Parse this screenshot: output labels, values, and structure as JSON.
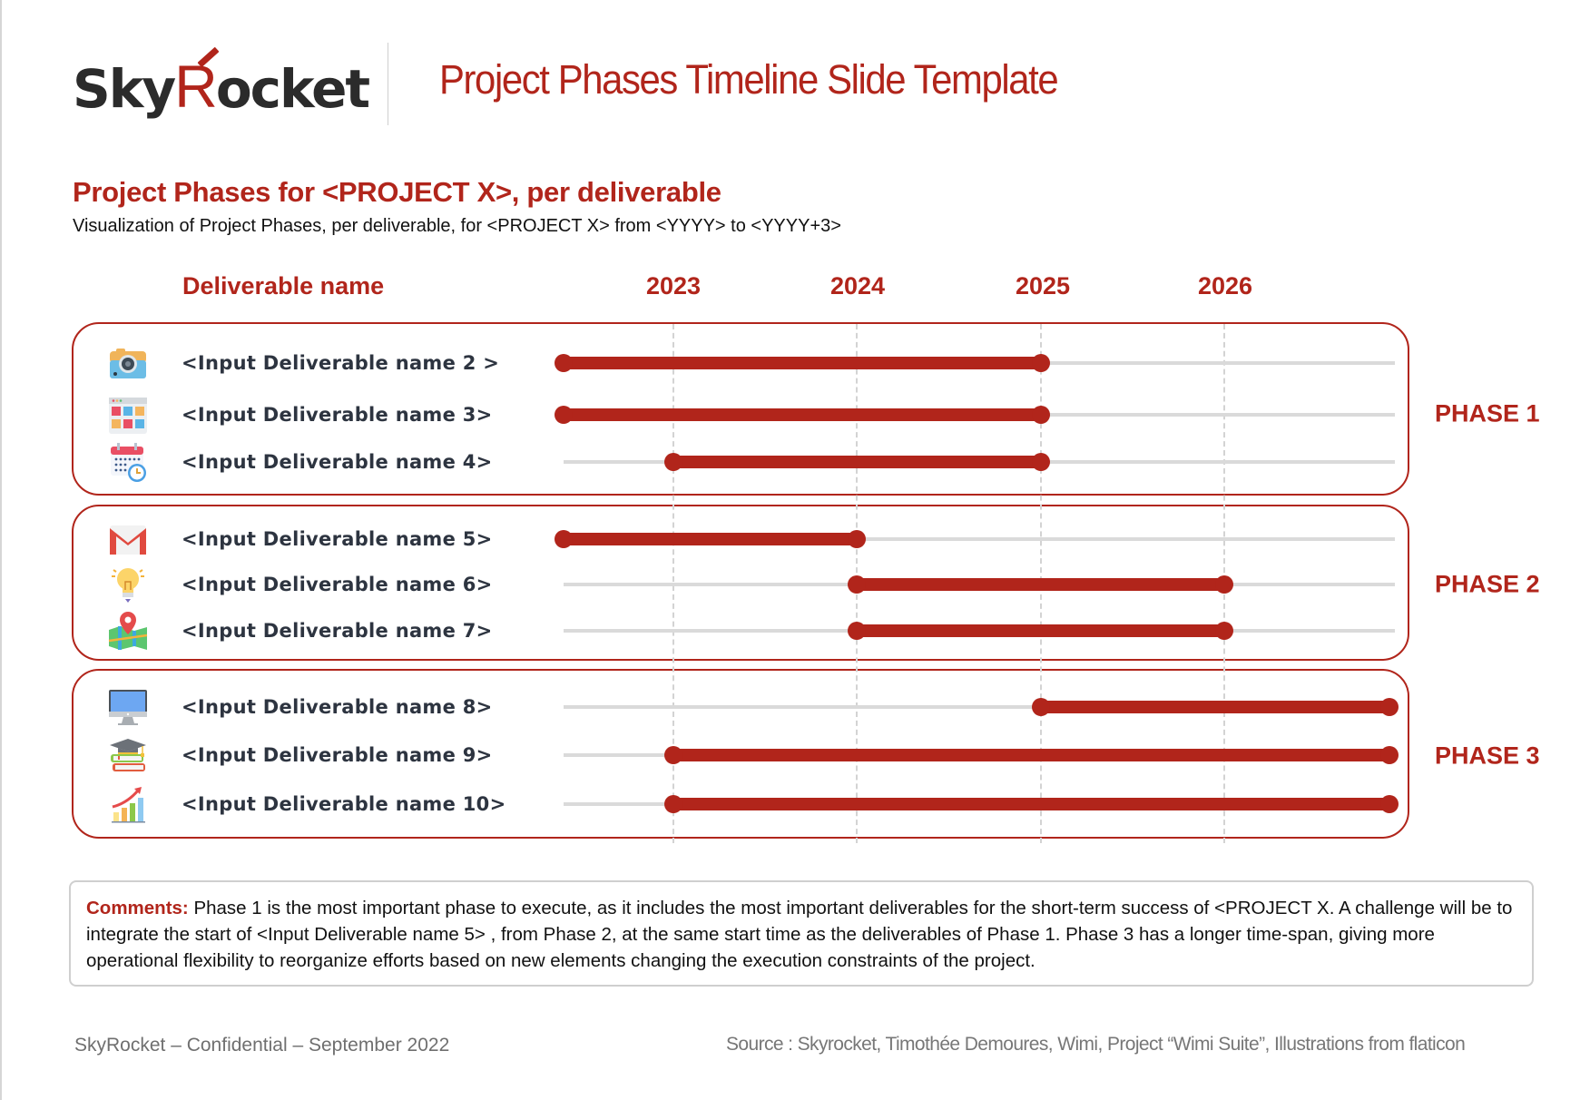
{
  "header": {
    "logo_prefix": "Sky",
    "logo_r": "R",
    "logo_suffix": "ocket",
    "title": "Project Phases Timeline Slide Template"
  },
  "section": {
    "heading": "Project Phases for <PROJECT X>, per deliverable",
    "subheading": "Visualization of Project Phases, per deliverable, for <PROJECT X> from <YYYY> to <YYYY+3>"
  },
  "colors": {
    "accent": "#b1251b",
    "track": "#dadada",
    "text_dark": "#2d3440"
  },
  "chart_data": {
    "type": "gantt",
    "title": "Project Phases for <PROJECT X>, per deliverable",
    "column_header": "Deliverable name",
    "x_ticks": [
      "2023",
      "2024",
      "2025",
      "2026"
    ],
    "x_range": [
      2022.4,
      2026.95
    ],
    "grid": "vertical dashed at year ticks",
    "phases": [
      {
        "name": "PHASE 1",
        "deliverables": [
          {
            "label": "<Input Deliverable name 2 >",
            "icon": "camera-icon",
            "start": 2022.4,
            "end": 2025.0
          },
          {
            "label": "<Input Deliverable name 3>",
            "icon": "app-grid-icon",
            "start": 2022.4,
            "end": 2025.0
          },
          {
            "label": "<Input Deliverable name 4>",
            "icon": "calendar-clock-icon",
            "start": 2023.0,
            "end": 2025.0
          }
        ]
      },
      {
        "name": "PHASE 2",
        "deliverables": [
          {
            "label": "<Input Deliverable name 5>",
            "icon": "gmail-icon",
            "start": 2022.4,
            "end": 2024.0
          },
          {
            "label": "<Input Deliverable name 6>",
            "icon": "lightbulb-icon",
            "start": 2024.0,
            "end": 2026.0
          },
          {
            "label": "<Input Deliverable name 7>",
            "icon": "map-pin-icon",
            "start": 2024.0,
            "end": 2026.0
          }
        ]
      },
      {
        "name": "PHASE 3",
        "deliverables": [
          {
            "label": "<Input Deliverable name 8>",
            "icon": "monitor-icon",
            "start": 2025.0,
            "end": 2026.9
          },
          {
            "label": "<Input Deliverable name 9>",
            "icon": "graduation-books-icon",
            "start": 2023.0,
            "end": 2026.9
          },
          {
            "label": "<Input Deliverable name 10>",
            "icon": "growth-chart-icon",
            "start": 2023.0,
            "end": 2026.9
          }
        ]
      }
    ]
  },
  "comments": {
    "label": "Comments:",
    "text": " Phase 1 is the most important phase to execute, as it includes the most important deliverables for the short-term success of <PROJECT X. A challenge will be to integrate the start of <Input Deliverable name 5> , from Phase 2, at the same start time as the deliverables of Phase 1. Phase 3 has a longer time-span, giving more operational flexibility to reorganize efforts based on new elements changing the execution constraints of the project."
  },
  "footer": {
    "left": "SkyRocket – Confidential – September 2022",
    "right": "Source : Skyrocket, Timothée Demoures, Wimi, Project “Wimi Suite”, Illustrations from flaticon"
  }
}
